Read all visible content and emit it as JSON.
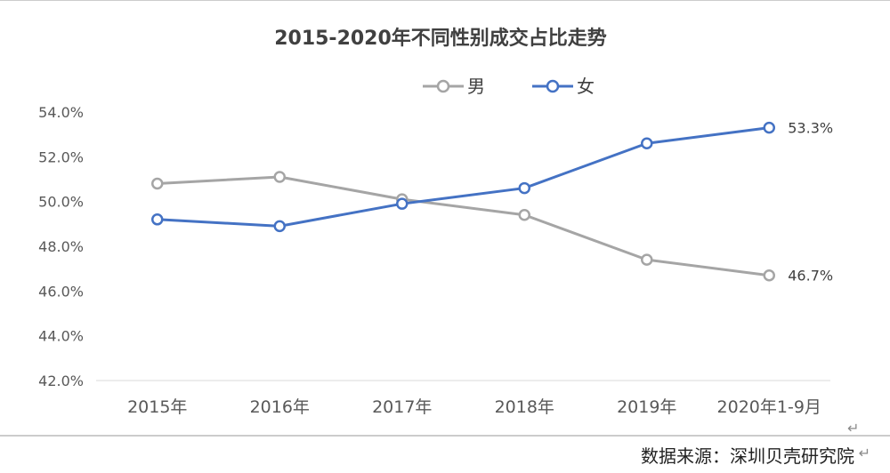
{
  "chart_data": {
    "type": "line",
    "title": "2015-2020年不同性别成交占比走势",
    "categories": [
      "2015年",
      "2016年",
      "2017年",
      "2018年",
      "2019年",
      "2020年1-9月"
    ],
    "series": [
      {
        "name": "男",
        "color": "#a5a5a5",
        "values": [
          50.8,
          51.1,
          50.1,
          49.4,
          47.4,
          46.7
        ]
      },
      {
        "name": "女",
        "color": "#4472c4",
        "values": [
          49.2,
          48.9,
          49.9,
          50.6,
          52.6,
          53.3
        ]
      }
    ],
    "data_labels": [
      {
        "series": "女",
        "category": "2020年1-9月",
        "text": "53.3%"
      },
      {
        "series": "男",
        "category": "2020年1-9月",
        "text": "46.7%"
      }
    ],
    "ylim": [
      42.0,
      54.0
    ],
    "yticks": [
      "54.0%",
      "52.0%",
      "50.0%",
      "48.0%",
      "46.0%",
      "44.0%",
      "42.0%"
    ],
    "xlabel": "",
    "ylabel": "",
    "grid": false,
    "legend_position": "top-center"
  },
  "return_mark": "↵",
  "source_note": "数据来源：深圳贝壳研究院",
  "source_return_mark": "↵"
}
